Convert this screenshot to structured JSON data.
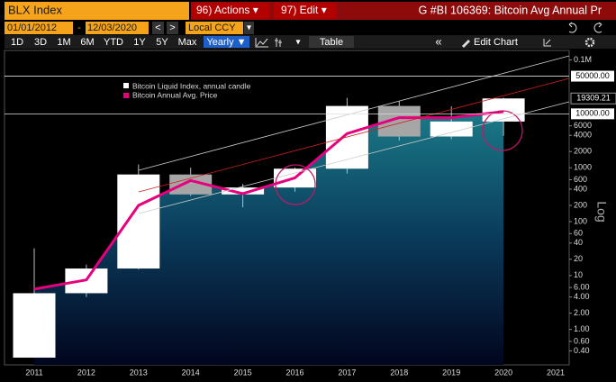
{
  "header": {
    "security": "BLX Index",
    "actions": "96) Actions ▾",
    "edit": "97) Edit ▾",
    "title": "G #BI 106369: Bitcoin Avg Annual Pr"
  },
  "controls": {
    "start_date": "01/01/2012",
    "date_sep": "-",
    "end_date": "12/03/2020",
    "prev": "<",
    "next": ">",
    "currency": "Local CCY",
    "currency_caret": "▾",
    "ranges": [
      "1D",
      "3D",
      "1M",
      "6M",
      "YTD",
      "1Y",
      "5Y",
      "Max"
    ],
    "period": "Yearly ▼",
    "caret": "▾",
    "table": "Table",
    "collapse": "«",
    "edit_chart": "Edit Chart"
  },
  "chart_data": {
    "type": "candlestick",
    "categories": [
      "2011",
      "2012",
      "2013",
      "2014",
      "2015",
      "2016",
      "2017",
      "2018",
      "2019",
      "2020",
      "2021"
    ],
    "candles": {
      "name": "Bitcoin Liquid Index, annual candle",
      "color": "#ffffff",
      "down_color": "#a6a6a6",
      "open": [
        0.3,
        4.7,
        13.5,
        750,
        320,
        430,
        960,
        14000,
        3800,
        7200,
        null
      ],
      "high": [
        32,
        16,
        1150,
        1000,
        500,
        1000,
        19800,
        17000,
        13800,
        19900,
        null
      ],
      "low": [
        0.3,
        4,
        13,
        300,
        185,
        360,
        780,
        3200,
        3400,
        3900,
        null
      ],
      "close": [
        4.7,
        13.5,
        750,
        320,
        430,
        960,
        14000,
        3800,
        7200,
        19309.21,
        null
      ]
    },
    "series": [
      {
        "name": "Bitcoin Annual Avg. Price",
        "color": "#e6007e",
        "values": [
          5.6,
          8.3,
          200,
          580,
          330,
          650,
          4300,
          8500,
          8500,
          11000,
          null
        ]
      }
    ],
    "log_scale": true,
    "ylim": [
      0.22,
      150000
    ],
    "yticks": [
      {
        "value": 0.4,
        "label": "0.40"
      },
      {
        "value": 0.6,
        "label": "0.60"
      },
      {
        "value": 1,
        "label": "1.00"
      },
      {
        "value": 2,
        "label": "2.00"
      },
      {
        "value": 4,
        "label": "4.00"
      },
      {
        "value": 6,
        "label": "6.00"
      },
      10,
      20,
      40,
      60,
      100,
      200,
      400,
      600,
      1000,
      2000,
      4000,
      6000,
      {
        "value": 100000,
        "label": "0.1M"
      }
    ],
    "price_lines": [
      {
        "value": 50000,
        "label": "50000.00"
      },
      {
        "value": 10000,
        "label": "10000.00"
      }
    ],
    "y_axis_label": "Log"
  }
}
